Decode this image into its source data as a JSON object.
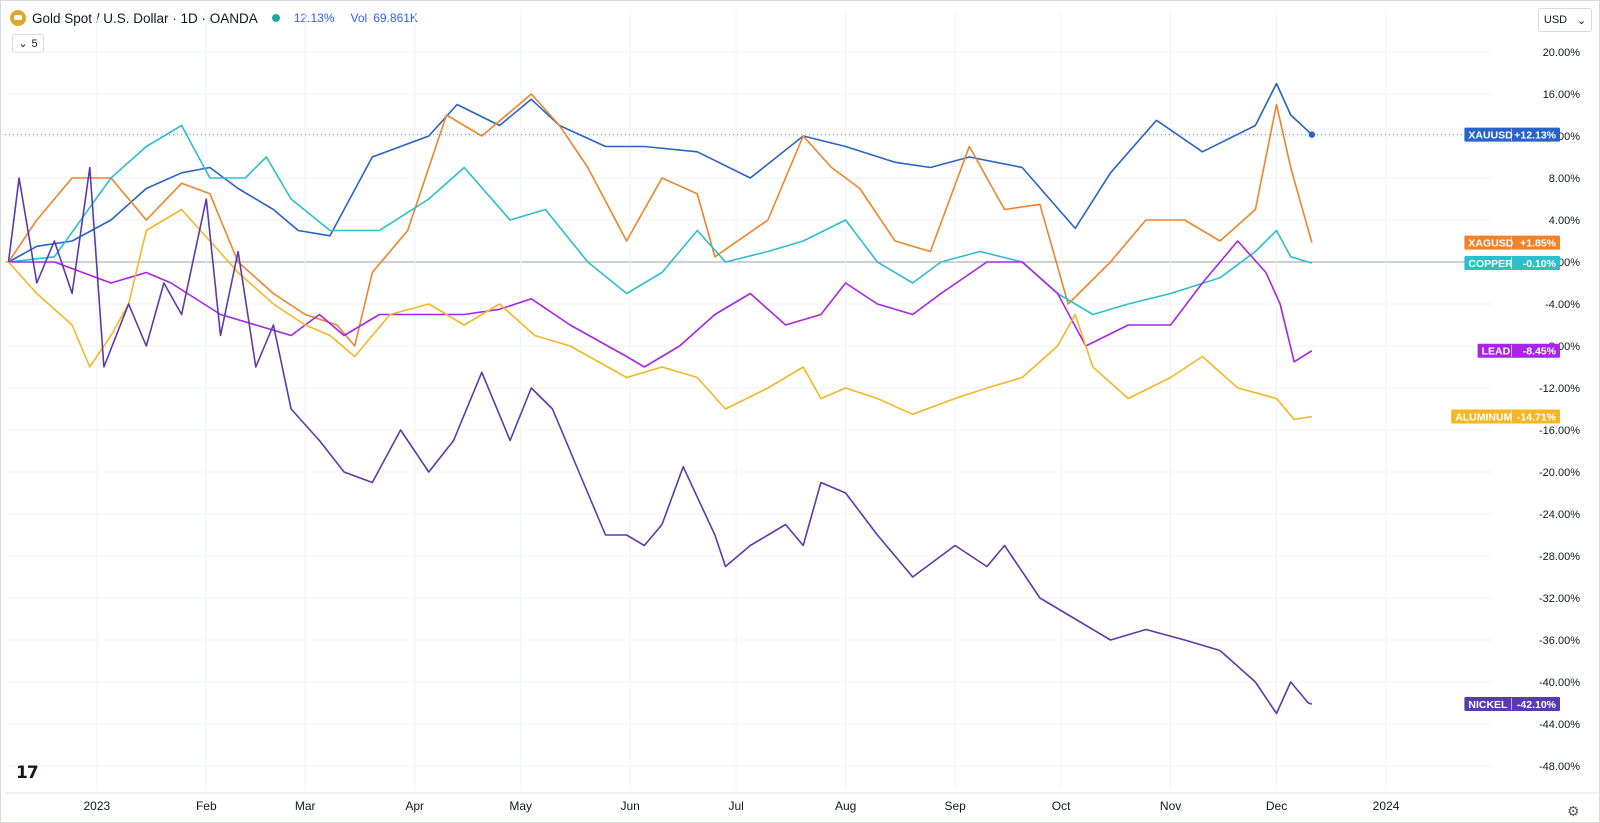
{
  "header": {
    "symbol_title": "Gold Spot / U.S. Dollar · 1D · OANDA",
    "change": "12.13%",
    "volume_label": "Vol",
    "volume_value": "69.861K"
  },
  "indicators_toggle": {
    "count": "5"
  },
  "currency_select": {
    "value": "USD"
  },
  "colors": {
    "XAUUSD": "#2962c8",
    "XAGUSD": "#f0832a",
    "COPPER": "#2bbfcb",
    "LEAD": "#a725e4",
    "ALUMINUM": "#f5b625",
    "NICKEL": "#5b3aad"
  },
  "chart_data": {
    "type": "line",
    "ylabel_unit": "%",
    "ylim": [
      -48,
      21
    ],
    "yticks": [
      "20.00%",
      "16.00%",
      "12.00%",
      "8.00%",
      "4.00%",
      "0.00%",
      "-4.00%",
      "-8.00%",
      "-12.00%",
      "-16.00%",
      "-20.00%",
      "-24.00%",
      "-28.00%",
      "-32.00%",
      "-36.00%",
      "-40.00%",
      "-44.00%",
      "-48.00%"
    ],
    "ytick_values": [
      20,
      16,
      12,
      8,
      4,
      0,
      -4,
      -8,
      -12,
      -16,
      -20,
      -24,
      -28,
      -32,
      -36,
      -40,
      -44,
      -48
    ],
    "x_range": [
      "2022-12-06",
      "2024-01-31"
    ],
    "xticks": [
      {
        "label": "2023",
        "date": "2023-01-01"
      },
      {
        "label": "Feb",
        "date": "2023-02-01"
      },
      {
        "label": "Mar",
        "date": "2023-03-01"
      },
      {
        "label": "Apr",
        "date": "2023-04-01"
      },
      {
        "label": "May",
        "date": "2023-05-01"
      },
      {
        "label": "Jun",
        "date": "2023-06-01"
      },
      {
        "label": "Jul",
        "date": "2023-07-01"
      },
      {
        "label": "Aug",
        "date": "2023-08-01"
      },
      {
        "label": "Sep",
        "date": "2023-09-01"
      },
      {
        "label": "Oct",
        "date": "2023-10-01"
      },
      {
        "label": "Nov",
        "date": "2023-11-01"
      },
      {
        "label": "Dec",
        "date": "2023-12-01"
      },
      {
        "label": "2024",
        "date": "2024-01-01"
      }
    ],
    "grid": true,
    "zero_line": 0,
    "series": [
      {
        "name": "XAUUSD",
        "label": "+12.13%",
        "last": 12.13,
        "points": [
          [
            "2022-12-07",
            0
          ],
          [
            "2022-12-15",
            1.5
          ],
          [
            "2022-12-25",
            2
          ],
          [
            "2023-01-05",
            4
          ],
          [
            "2023-01-15",
            7
          ],
          [
            "2023-01-25",
            8.5
          ],
          [
            "2023-02-02",
            9
          ],
          [
            "2023-02-10",
            7
          ],
          [
            "2023-02-20",
            5
          ],
          [
            "2023-02-27",
            3
          ],
          [
            "2023-03-08",
            2.5
          ],
          [
            "2023-03-20",
            10
          ],
          [
            "2023-04-05",
            12
          ],
          [
            "2023-04-13",
            15
          ],
          [
            "2023-04-25",
            13
          ],
          [
            "2023-05-04",
            15.5
          ],
          [
            "2023-05-12",
            13
          ],
          [
            "2023-05-25",
            11
          ],
          [
            "2023-06-05",
            11
          ],
          [
            "2023-06-20",
            10.5
          ],
          [
            "2023-07-05",
            8
          ],
          [
            "2023-07-20",
            12
          ],
          [
            "2023-08-01",
            11
          ],
          [
            "2023-08-15",
            9.5
          ],
          [
            "2023-08-25",
            9
          ],
          [
            "2023-09-05",
            10
          ],
          [
            "2023-09-20",
            9
          ],
          [
            "2023-10-05",
            3.2
          ],
          [
            "2023-10-15",
            8.5
          ],
          [
            "2023-10-28",
            13.5
          ],
          [
            "2023-11-10",
            10.5
          ],
          [
            "2023-11-25",
            13
          ],
          [
            "2023-12-01",
            17
          ],
          [
            "2023-12-05",
            14
          ],
          [
            "2023-12-11",
            12.13
          ]
        ]
      },
      {
        "name": "XAGUSD",
        "label": "+1.85%",
        "last": 1.85,
        "points": [
          [
            "2022-12-07",
            0
          ],
          [
            "2022-12-15",
            4
          ],
          [
            "2022-12-25",
            8
          ],
          [
            "2023-01-05",
            8
          ],
          [
            "2023-01-15",
            4
          ],
          [
            "2023-01-25",
            7.5
          ],
          [
            "2023-02-02",
            6.5
          ],
          [
            "2023-02-10",
            0
          ],
          [
            "2023-02-20",
            -3
          ],
          [
            "2023-03-01",
            -5
          ],
          [
            "2023-03-10",
            -6
          ],
          [
            "2023-03-15",
            -8
          ],
          [
            "2023-03-20",
            -1
          ],
          [
            "2023-03-30",
            3
          ],
          [
            "2023-04-10",
            14
          ],
          [
            "2023-04-20",
            12
          ],
          [
            "2023-05-04",
            16
          ],
          [
            "2023-05-12",
            13
          ],
          [
            "2023-05-20",
            9
          ],
          [
            "2023-05-31",
            2
          ],
          [
            "2023-06-10",
            8
          ],
          [
            "2023-06-20",
            6.5
          ],
          [
            "2023-06-25",
            0.5
          ],
          [
            "2023-07-10",
            4
          ],
          [
            "2023-07-20",
            12
          ],
          [
            "2023-07-28",
            9
          ],
          [
            "2023-08-05",
            7
          ],
          [
            "2023-08-15",
            2
          ],
          [
            "2023-08-25",
            1
          ],
          [
            "2023-09-05",
            11
          ],
          [
            "2023-09-15",
            5
          ],
          [
            "2023-09-25",
            5.5
          ],
          [
            "2023-10-03",
            -4
          ],
          [
            "2023-10-15",
            0
          ],
          [
            "2023-10-25",
            4
          ],
          [
            "2023-11-05",
            4
          ],
          [
            "2023-11-15",
            2
          ],
          [
            "2023-11-25",
            5
          ],
          [
            "2023-12-01",
            15
          ],
          [
            "2023-12-05",
            9
          ],
          [
            "2023-12-11",
            1.85
          ]
        ]
      },
      {
        "name": "COPPER",
        "label": "-0.10%",
        "last": -0.1,
        "points": [
          [
            "2022-12-07",
            0
          ],
          [
            "2022-12-20",
            0.5
          ],
          [
            "2023-01-05",
            8
          ],
          [
            "2023-01-15",
            11
          ],
          [
            "2023-01-25",
            13
          ],
          [
            "2023-02-02",
            8
          ],
          [
            "2023-02-12",
            8
          ],
          [
            "2023-02-18",
            10
          ],
          [
            "2023-02-25",
            6
          ],
          [
            "2023-03-08",
            3
          ],
          [
            "2023-03-15",
            3
          ],
          [
            "2023-03-22",
            3
          ],
          [
            "2023-04-05",
            6
          ],
          [
            "2023-04-15",
            9
          ],
          [
            "2023-04-28",
            4
          ],
          [
            "2023-05-08",
            5
          ],
          [
            "2023-05-20",
            0
          ],
          [
            "2023-05-31",
            -3
          ],
          [
            "2023-06-10",
            -1
          ],
          [
            "2023-06-20",
            3
          ],
          [
            "2023-06-28",
            0
          ],
          [
            "2023-07-10",
            1
          ],
          [
            "2023-07-20",
            2
          ],
          [
            "2023-08-01",
            4
          ],
          [
            "2023-08-10",
            0
          ],
          [
            "2023-08-20",
            -2
          ],
          [
            "2023-08-28",
            0
          ],
          [
            "2023-09-08",
            1
          ],
          [
            "2023-09-20",
            0
          ],
          [
            "2023-09-30",
            -3
          ],
          [
            "2023-10-10",
            -5
          ],
          [
            "2023-10-20",
            -4
          ],
          [
            "2023-11-01",
            -3
          ],
          [
            "2023-11-15",
            -1.5
          ],
          [
            "2023-11-25",
            1
          ],
          [
            "2023-12-01",
            3
          ],
          [
            "2023-12-05",
            0.5
          ],
          [
            "2023-12-11",
            -0.1
          ]
        ]
      },
      {
        "name": "LEAD",
        "label": "-8.45%",
        "last": -8.45,
        "points": [
          [
            "2022-12-07",
            0
          ],
          [
            "2022-12-20",
            0
          ],
          [
            "2023-01-05",
            -2
          ],
          [
            "2023-01-15",
            -1
          ],
          [
            "2023-01-22",
            -2
          ],
          [
            "2023-02-05",
            -5
          ],
          [
            "2023-02-15",
            -6
          ],
          [
            "2023-02-25",
            -7
          ],
          [
            "2023-03-05",
            -5
          ],
          [
            "2023-03-12",
            -7
          ],
          [
            "2023-03-22",
            -5
          ],
          [
            "2023-04-05",
            -5
          ],
          [
            "2023-04-15",
            -5
          ],
          [
            "2023-04-25",
            -4.5
          ],
          [
            "2023-05-04",
            -3.5
          ],
          [
            "2023-05-15",
            -6
          ],
          [
            "2023-05-31",
            -9
          ],
          [
            "2023-06-05",
            -10
          ],
          [
            "2023-06-15",
            -8
          ],
          [
            "2023-06-25",
            -5
          ],
          [
            "2023-07-05",
            -3
          ],
          [
            "2023-07-15",
            -6
          ],
          [
            "2023-07-25",
            -5
          ],
          [
            "2023-08-01",
            -2
          ],
          [
            "2023-08-10",
            -4
          ],
          [
            "2023-08-20",
            -5
          ],
          [
            "2023-08-28",
            -3
          ],
          [
            "2023-09-10",
            0
          ],
          [
            "2023-09-20",
            0
          ],
          [
            "2023-09-30",
            -3
          ],
          [
            "2023-10-08",
            -8
          ],
          [
            "2023-10-20",
            -6
          ],
          [
            "2023-11-01",
            -6
          ],
          [
            "2023-11-10",
            -2
          ],
          [
            "2023-11-20",
            2
          ],
          [
            "2023-11-28",
            -1
          ],
          [
            "2023-12-02",
            -4
          ],
          [
            "2023-12-06",
            -9.5
          ],
          [
            "2023-12-11",
            -8.45
          ]
        ]
      },
      {
        "name": "ALUMINUM",
        "label": "-14.71%",
        "last": -14.71,
        "points": [
          [
            "2022-12-07",
            0
          ],
          [
            "2022-12-15",
            -3
          ],
          [
            "2022-12-25",
            -6
          ],
          [
            "2022-12-30",
            -10
          ],
          [
            "2023-01-05",
            -7
          ],
          [
            "2023-01-10",
            -4
          ],
          [
            "2023-01-15",
            3
          ],
          [
            "2023-01-25",
            5
          ],
          [
            "2023-02-02",
            2
          ],
          [
            "2023-02-10",
            -1
          ],
          [
            "2023-02-20",
            -4
          ],
          [
            "2023-03-01",
            -6
          ],
          [
            "2023-03-08",
            -7
          ],
          [
            "2023-03-15",
            -9
          ],
          [
            "2023-03-25",
            -5
          ],
          [
            "2023-04-05",
            -4
          ],
          [
            "2023-04-15",
            -6
          ],
          [
            "2023-04-25",
            -4
          ],
          [
            "2023-05-05",
            -7
          ],
          [
            "2023-05-15",
            -8
          ],
          [
            "2023-05-31",
            -11
          ],
          [
            "2023-06-10",
            -10
          ],
          [
            "2023-06-20",
            -11
          ],
          [
            "2023-06-28",
            -14
          ],
          [
            "2023-07-10",
            -12
          ],
          [
            "2023-07-20",
            -10
          ],
          [
            "2023-07-25",
            -13
          ],
          [
            "2023-08-01",
            -12
          ],
          [
            "2023-08-10",
            -13
          ],
          [
            "2023-08-20",
            -14.5
          ],
          [
            "2023-09-01",
            -13
          ],
          [
            "2023-09-10",
            -12
          ],
          [
            "2023-09-20",
            -11
          ],
          [
            "2023-09-30",
            -8
          ],
          [
            "2023-10-05",
            -5
          ],
          [
            "2023-10-10",
            -10
          ],
          [
            "2023-10-20",
            -13
          ],
          [
            "2023-11-01",
            -11
          ],
          [
            "2023-11-10",
            -9
          ],
          [
            "2023-11-20",
            -12
          ],
          [
            "2023-12-01",
            -13
          ],
          [
            "2023-12-06",
            -15
          ],
          [
            "2023-12-11",
            -14.71
          ]
        ]
      },
      {
        "name": "NICKEL",
        "label": "-42.10%",
        "last": -42.1,
        "points": [
          [
            "2022-12-07",
            0
          ],
          [
            "2022-12-10",
            8
          ],
          [
            "2022-12-15",
            -2
          ],
          [
            "2022-12-20",
            2
          ],
          [
            "2022-12-25",
            -3
          ],
          [
            "2022-12-30",
            9
          ],
          [
            "2023-01-03",
            -10
          ],
          [
            "2023-01-10",
            -4
          ],
          [
            "2023-01-15",
            -8
          ],
          [
            "2023-01-20",
            -2
          ],
          [
            "2023-01-25",
            -5
          ],
          [
            "2023-02-01",
            6
          ],
          [
            "2023-02-05",
            -7
          ],
          [
            "2023-02-10",
            1
          ],
          [
            "2023-02-15",
            -10
          ],
          [
            "2023-02-20",
            -6
          ],
          [
            "2023-02-25",
            -14
          ],
          [
            "2023-03-05",
            -17
          ],
          [
            "2023-03-12",
            -20
          ],
          [
            "2023-03-20",
            -21
          ],
          [
            "2023-03-28",
            -16
          ],
          [
            "2023-04-05",
            -20
          ],
          [
            "2023-04-12",
            -17
          ],
          [
            "2023-04-20",
            -10.5
          ],
          [
            "2023-04-28",
            -17
          ],
          [
            "2023-05-04",
            -12
          ],
          [
            "2023-05-10",
            -14
          ],
          [
            "2023-05-20",
            -22
          ],
          [
            "2023-05-25",
            -26
          ],
          [
            "2023-05-31",
            -26
          ],
          [
            "2023-06-05",
            -27
          ],
          [
            "2023-06-10",
            -25
          ],
          [
            "2023-06-16",
            -19.5
          ],
          [
            "2023-06-25",
            -26
          ],
          [
            "2023-06-28",
            -29
          ],
          [
            "2023-07-05",
            -27
          ],
          [
            "2023-07-15",
            -25
          ],
          [
            "2023-07-20",
            -27
          ],
          [
            "2023-07-25",
            -21
          ],
          [
            "2023-08-01",
            -22
          ],
          [
            "2023-08-10",
            -26
          ],
          [
            "2023-08-20",
            -30
          ],
          [
            "2023-09-01",
            -27
          ],
          [
            "2023-09-10",
            -29
          ],
          [
            "2023-09-15",
            -27
          ],
          [
            "2023-09-25",
            -32
          ],
          [
            "2023-10-05",
            -34
          ],
          [
            "2023-10-15",
            -36
          ],
          [
            "2023-10-25",
            -35
          ],
          [
            "2023-11-05",
            -36
          ],
          [
            "2023-11-15",
            -37
          ],
          [
            "2023-11-25",
            -40
          ],
          [
            "2023-12-01",
            -43
          ],
          [
            "2023-12-05",
            -40
          ],
          [
            "2023-12-10",
            -42
          ],
          [
            "2023-12-11",
            -42.1
          ]
        ]
      }
    ]
  }
}
